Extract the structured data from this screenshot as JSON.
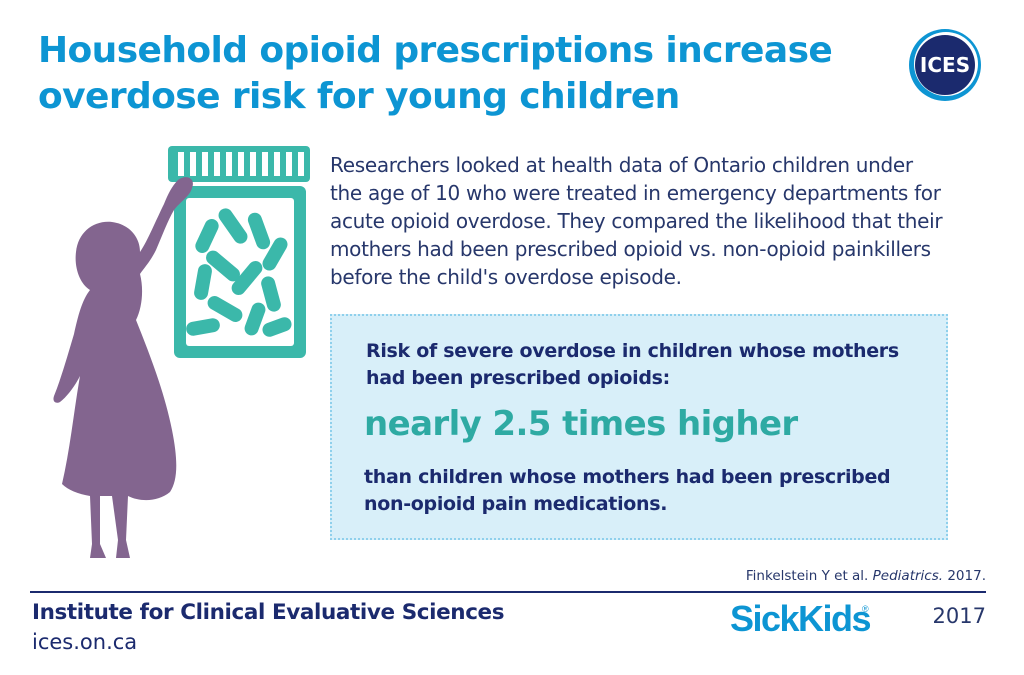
{
  "headline": {
    "line1": "Household opioid prescriptions increase",
    "line2": "overdose risk for young children"
  },
  "logo": {
    "text": "ICES",
    "icon": "ices-logo-icon"
  },
  "illustration": {
    "icon": "child-reaching-pill-bottle-icon"
  },
  "intro": {
    "lines": [
      "Researchers looked at health data of Ontario children under",
      "the age of 10 who were treated in emergency departments for",
      "acute opioid overdose. They compared the likelihood that their",
      "mothers had been prescribed opioid vs. non-opioid painkillers",
      "before the child's overdose episode."
    ]
  },
  "risk": {
    "heading_line1": "Risk of severe overdose in children whose mothers",
    "heading_line2": "had been prescribed opioids:",
    "highlight": "nearly 2.5 times higher",
    "comparison_line1": "than children whose mothers had been prescribed",
    "comparison_line2": "non-opioid pain medications."
  },
  "citation": {
    "authors": "Finkelstein Y et al.",
    "journal": "Pediatrics.",
    "year": "2017."
  },
  "footer": {
    "org_name": "Institute for Clinical Evaluative Sciences",
    "url": "ices.on.ca",
    "partner_logo": "SickKids",
    "partner_reg": "®",
    "year": "2017"
  },
  "colors": {
    "title_blue": "#0d95d3",
    "navy": "#1b2a6e",
    "teal": "#2eaaa3",
    "box_bg": "#d8eff9",
    "silhouette": "#83658f"
  }
}
